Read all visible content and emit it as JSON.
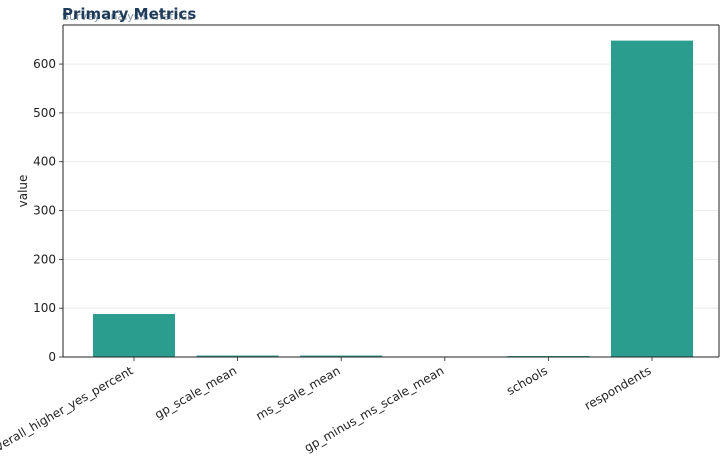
{
  "chart_data": {
    "type": "bar",
    "title": "Primary Metrics",
    "subtitle": "Survey analysis metrics",
    "xlabel": "",
    "ylabel": "value",
    "categories": [
      "overall_higher_yes_percent",
      "gp_scale_mean",
      "ms_scale_mean",
      "gp_minus_ms_scale_mean",
      "schools",
      "respondents"
    ],
    "values": [
      88,
      3,
      3,
      0.2,
      2,
      648
    ],
    "ylim": [
      0,
      680
    ],
    "yticks": [
      0,
      100,
      200,
      300,
      400,
      500,
      600
    ],
    "grid": "horizontal",
    "bar_color": "#2a9d8f"
  }
}
